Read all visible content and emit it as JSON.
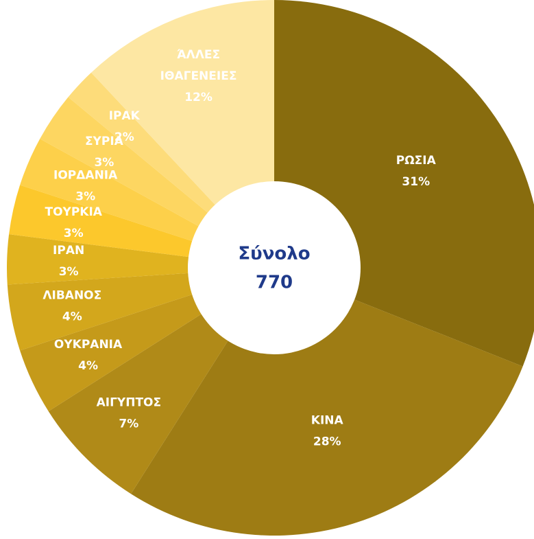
{
  "chart_data": {
    "type": "donut",
    "categories": [
      "ΡΩΣΙΑ",
      "ΚΙΝΑ",
      "ΑΙΓΥΠΤΟΣ",
      "ΟΥΚΡΑΝΙΑ",
      "ΛΙΒΑΝΟΣ",
      "ΙΡΑΝ",
      "ΤΟΥΡΚΙΑ",
      "ΙΟΡΔΑΝΙΑ",
      "ΣΥΡΙΑ",
      "ΙΡΑΚ",
      "ΆΛΛΕΣ ΙΘΑΓΕΝΕΙΕΣ"
    ],
    "values": [
      31,
      28,
      7,
      4,
      4,
      3,
      3,
      3,
      3,
      2,
      12
    ],
    "value_labels": [
      "31%",
      "28%",
      "7%",
      "4%",
      "4%",
      "3%",
      "3%",
      "3%",
      "3%",
      "2%",
      "12%"
    ],
    "colors": [
      "#886c0e",
      "#9e7c14",
      "#b08a18",
      "#c59a1a",
      "#d3a71c",
      "#e0b31f",
      "#fcc82c",
      "#fdd04a",
      "#fdd661",
      "#fddc7a",
      "#fde7a3"
    ],
    "center_title": "Σύνολο",
    "total": 770
  }
}
